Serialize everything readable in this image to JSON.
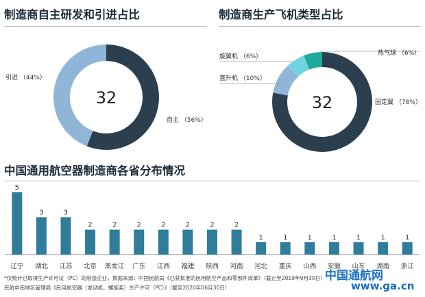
{
  "panel1": {
    "title": "制造商自主研发和引进占比",
    "center": "32"
  },
  "panel2": {
    "title": "制造商生产飞机类型占比",
    "center": "32"
  },
  "panel3": {
    "title": "中国通用航空器制造商各省分布情况"
  },
  "footnote": {
    "line1": "*仅统计已取得生产许可证（PC）的制造企业，数据来源：中国民航局《已获批准的民用航空产品和零部件清单》（截止至2019年9月30日）",
    "line2": "民航中南地区管理局《民用航空器（发动机、螺旋桨）生产许可（PC）》（截至2020年06月30日）"
  },
  "watermark": {
    "name": "中国通航网",
    "url": "www.ga.cn"
  },
  "colors": {
    "accent": "#2f7d9b",
    "dark": "#2b3f4f",
    "light": "#8fb6d6",
    "teal": "#1fa99a",
    "cyan": "#72d3e0"
  },
  "chart_data": [
    {
      "type": "pie",
      "title": "制造商自主研发和引进占比",
      "center_label": "32",
      "slices": [
        {
          "label": "自主",
          "value": 56,
          "display": "自主 （56%）",
          "color": "#2b3f4f"
        },
        {
          "label": "引进",
          "value": 44,
          "display": "引进 （44%）",
          "color": "#8fb6d6"
        }
      ]
    },
    {
      "type": "pie",
      "title": "制造商生产飞机类型占比",
      "center_label": "32",
      "slices": [
        {
          "label": "固定翼",
          "value": 78,
          "display": "固定翼 （78%）",
          "color": "#2b3f4f"
        },
        {
          "label": "直升机",
          "value": 10,
          "display": "直升机 （10%）",
          "color": "#8fb6d6"
        },
        {
          "label": "旋翼机",
          "value": 6,
          "display": "旋翼机 （6%）",
          "color": "#72d3e0"
        },
        {
          "label": "热气球",
          "value": 6,
          "display": "热气球 （6%）",
          "color": "#1fa99a"
        }
      ]
    },
    {
      "type": "bar",
      "title": "中国通用航空器制造商各省分布情况",
      "categories": [
        "辽宁",
        "湖北",
        "江苏",
        "北京",
        "黑龙江",
        "广东",
        "江西",
        "福建",
        "陕西",
        "河南",
        "河北",
        "重庆",
        "山西",
        "安徽",
        "山东",
        "湖南",
        "浙江"
      ],
      "values": [
        5,
        3,
        3,
        2,
        2,
        2,
        2,
        2,
        2,
        2,
        1,
        1,
        1,
        1,
        1,
        1,
        1
      ],
      "color": "#2f7d9b",
      "ylim": [
        0,
        5
      ]
    }
  ]
}
